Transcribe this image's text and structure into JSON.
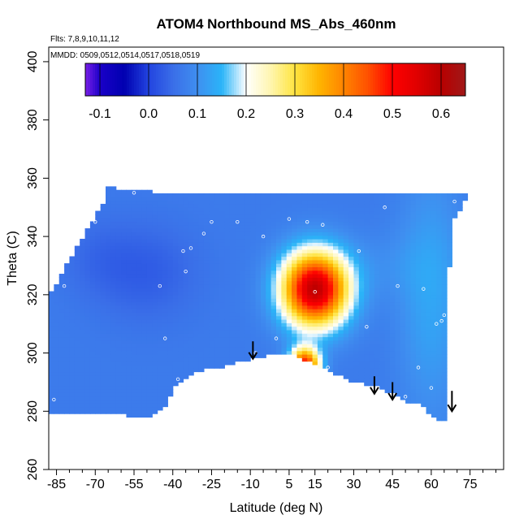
{
  "chart_data": {
    "type": "heatmap",
    "title": "ATOM4 Northbound MS_Abs_460nm",
    "subtitle_flights": "Flts: 7,8,9,10,11,12",
    "subtitle_dates": "MMDD: 0509,0512,0514,0517,0518,0519",
    "xlabel": "Latitude (deg N)",
    "ylabel": "Theta (C)",
    "xlim": [
      -88,
      88
    ],
    "ylim": [
      260,
      405
    ],
    "x_ticks": [
      -85,
      -70,
      -55,
      -40,
      -25,
      -10,
      5,
      15,
      30,
      45,
      60,
      75
    ],
    "x_minor_ticks": [
      -80,
      -75,
      -65,
      -60,
      -50,
      -45,
      -35,
      -30,
      -20,
      -15,
      -5,
      0,
      10,
      20,
      25,
      35,
      40,
      50,
      55,
      65,
      70,
      80,
      85
    ],
    "y_ticks": [
      260,
      280,
      300,
      320,
      340,
      360,
      380,
      400
    ],
    "colorbar": {
      "range": [
        -0.13,
        0.65
      ],
      "ticks": [
        -0.1,
        0.0,
        0.1,
        0.2,
        0.3,
        0.4,
        0.5,
        0.6
      ],
      "divisions": [
        -0.1,
        0.0,
        0.1,
        0.2,
        0.3,
        0.4,
        0.5,
        0.6
      ],
      "stops": [
        {
          "v": -0.13,
          "c": "#7a1fe8"
        },
        {
          "v": -0.1,
          "c": "#1a00c8"
        },
        {
          "v": -0.05,
          "c": "#0000b0"
        },
        {
          "v": 0.0,
          "c": "#2244e0"
        },
        {
          "v": 0.05,
          "c": "#3a6ee8"
        },
        {
          "v": 0.1,
          "c": "#3f8ff0"
        },
        {
          "v": 0.15,
          "c": "#2ab4f8"
        },
        {
          "v": 0.2,
          "c": "#ffffff"
        },
        {
          "v": 0.25,
          "c": "#fff6b0"
        },
        {
          "v": 0.3,
          "c": "#ffe440"
        },
        {
          "v": 0.35,
          "c": "#ffb400"
        },
        {
          "v": 0.4,
          "c": "#ff8400"
        },
        {
          "v": 0.45,
          "c": "#ff5000"
        },
        {
          "v": 0.5,
          "c": "#ff0000"
        },
        {
          "v": 0.55,
          "c": "#e00000"
        },
        {
          "v": 0.6,
          "c": "#b80000"
        },
        {
          "v": 0.65,
          "c": "#a01818"
        }
      ]
    },
    "field": {
      "background_value": 0.07,
      "boundary_top": [
        [
          -87,
          321
        ],
        [
          -85,
          324
        ],
        [
          -80,
          332
        ],
        [
          -72,
          344
        ],
        [
          -68,
          350
        ],
        [
          -66,
          353
        ],
        [
          -65,
          357
        ],
        [
          -60,
          356
        ],
        [
          -40,
          355
        ],
        [
          -10,
          355
        ],
        [
          20,
          355
        ],
        [
          50,
          355
        ],
        [
          75,
          355
        ]
      ],
      "boundary_right": [
        [
          75,
          355
        ],
        [
          68,
          345
        ],
        [
          67,
          330
        ],
        [
          66,
          300
        ],
        [
          66,
          277
        ],
        [
          64,
          276
        ]
      ],
      "boundary_bottom": [
        [
          64,
          276
        ],
        [
          60,
          278
        ],
        [
          55,
          283
        ],
        [
          50,
          283
        ],
        [
          45,
          286
        ],
        [
          40,
          288
        ],
        [
          35,
          289
        ],
        [
          30,
          290
        ],
        [
          25,
          292
        ],
        [
          18,
          295
        ],
        [
          10,
          298
        ],
        [
          5,
          300
        ],
        [
          0,
          300
        ],
        [
          -8,
          298
        ],
        [
          -15,
          297
        ],
        [
          -20,
          295
        ],
        [
          -30,
          294
        ],
        [
          -35,
          291
        ],
        [
          -40,
          288
        ],
        [
          -42,
          282
        ],
        [
          -48,
          278
        ],
        [
          -58,
          278
        ],
        [
          -58,
          279
        ],
        [
          -87,
          279
        ]
      ],
      "features": [
        {
          "x": 15,
          "y": 322,
          "sx": 9,
          "sy": 9,
          "amp": 0.52
        },
        {
          "x": 11,
          "y": 296,
          "sx": 4,
          "sy": 4,
          "amp": 0.43
        },
        {
          "x": -50,
          "y": 328,
          "sx": 14,
          "sy": 12,
          "amp": -0.04
        },
        {
          "x": -70,
          "y": 333,
          "sx": 10,
          "sy": 10,
          "amp": -0.02
        },
        {
          "x": 60,
          "y": 320,
          "sx": 9,
          "sy": 30,
          "amp": 0.06
        },
        {
          "x": 40,
          "y": 330,
          "sx": 14,
          "sy": 8,
          "amp": 0.02
        }
      ]
    },
    "sample_points": [
      [
        -86,
        284
      ],
      [
        -82,
        323
      ],
      [
        -70,
        345
      ],
      [
        -55,
        355
      ],
      [
        -45,
        323
      ],
      [
        -43,
        305
      ],
      [
        -38,
        291
      ],
      [
        -36,
        335
      ],
      [
        -35,
        328
      ],
      [
        -33,
        336
      ],
      [
        -28,
        341
      ],
      [
        -25,
        345
      ],
      [
        -15,
        345
      ],
      [
        -8,
        300
      ],
      [
        -5,
        340
      ],
      [
        0,
        305
      ],
      [
        5,
        346
      ],
      [
        8,
        297
      ],
      [
        12,
        345
      ],
      [
        15,
        321
      ],
      [
        18,
        344
      ],
      [
        20,
        295
      ],
      [
        32,
        335
      ],
      [
        35,
        309
      ],
      [
        42,
        350
      ],
      [
        47,
        323
      ],
      [
        50,
        285
      ],
      [
        55,
        295
      ],
      [
        57,
        322
      ],
      [
        60,
        288
      ],
      [
        62,
        310
      ],
      [
        64,
        311
      ],
      [
        65,
        313
      ],
      [
        67,
        325
      ],
      [
        69,
        352
      ]
    ],
    "arrows": [
      {
        "x": -9,
        "y_top": 304,
        "y_bottom": 298
      },
      {
        "x": 38,
        "y_top": 292,
        "y_bottom": 286
      },
      {
        "x": 45,
        "y_top": 290,
        "y_bottom": 284
      },
      {
        "x": 68,
        "y_top": 287,
        "y_bottom": 280
      }
    ]
  }
}
